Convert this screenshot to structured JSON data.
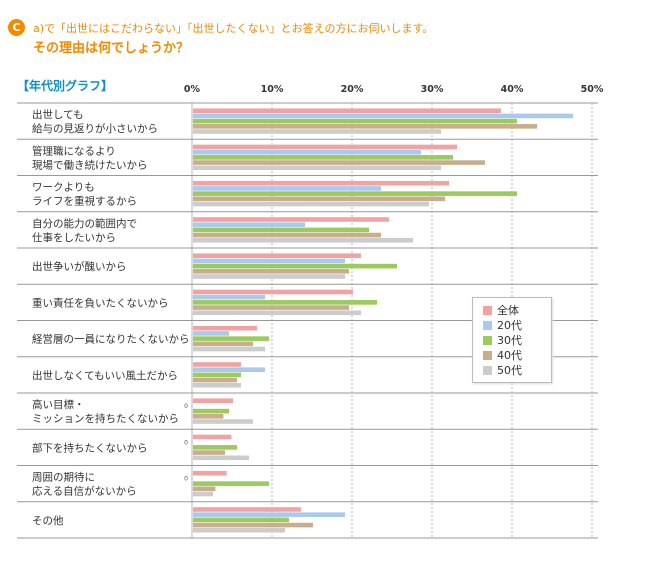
{
  "header": {
    "badge": "C",
    "question_line1": "a)で「出世にはこだわらない」「出世したくない」とお答えの方にお伺いします。",
    "question_line2": "その理由は何でしょうか？",
    "graph_title": "【年代別グラフ】"
  },
  "chart_data": {
    "type": "bar",
    "orientation": "horizontal",
    "title": "",
    "xlabel": "",
    "ylabel": "",
    "xlim": [
      0,
      50
    ],
    "tick_labels": [
      "0%",
      "10%",
      "20%",
      "30%",
      "40%",
      "50%"
    ],
    "grid": true,
    "legend_position": "right-middle",
    "categories": [
      [
        "出世しても",
        "給与の見返りが小さいから"
      ],
      [
        "管理職になるより",
        "現場で働き続けたいから"
      ],
      [
        "ワークよりも",
        "ライフを重視するから"
      ],
      [
        "自分の能力の範囲内で",
        "仕事をしたいから"
      ],
      [
        "出世争いが醜いから"
      ],
      [
        "重い責任を負いたくないから"
      ],
      [
        "経営層の一員になりたくないから"
      ],
      [
        "出世しなくてもいい風土だから"
      ],
      [
        "高い目標・",
        "ミッションを持ちたくないから"
      ],
      [
        "部下を持ちたくないから"
      ],
      [
        "周囲の期待に",
        "応える自信がないから"
      ],
      [
        "その他"
      ]
    ],
    "zero_labels": [
      {
        "category_index": 8,
        "text": "0"
      },
      {
        "category_index": 9,
        "text": "0"
      },
      {
        "category_index": 10,
        "text": "0"
      }
    ],
    "series": [
      {
        "name": "全体",
        "color": "#f0a3a3",
        "values": [
          38.5,
          33.0,
          32.0,
          24.5,
          21.0,
          20.0,
          8.0,
          6.0,
          5.0,
          4.8,
          4.2,
          13.5
        ]
      },
      {
        "name": "20代",
        "color": "#a9c9ee",
        "values": [
          47.5,
          28.5,
          23.5,
          14.0,
          19.0,
          9.0,
          4.5,
          9.0,
          0,
          0,
          0,
          19.0
        ]
      },
      {
        "name": "30代",
        "color": "#9bcb5c",
        "values": [
          40.5,
          32.5,
          40.5,
          22.0,
          25.5,
          23.0,
          9.5,
          6.0,
          4.5,
          5.5,
          9.5,
          12.0
        ]
      },
      {
        "name": "40代",
        "color": "#c9ae8c",
        "values": [
          43.0,
          36.5,
          31.5,
          23.5,
          19.5,
          19.5,
          7.5,
          5.5,
          3.8,
          4.0,
          2.8,
          15.0
        ]
      },
      {
        "name": "50代",
        "color": "#cccccc",
        "values": [
          31.0,
          31.0,
          29.5,
          27.5,
          19.0,
          21.0,
          9.0,
          6.0,
          7.5,
          7.0,
          2.5,
          11.5
        ]
      }
    ]
  }
}
